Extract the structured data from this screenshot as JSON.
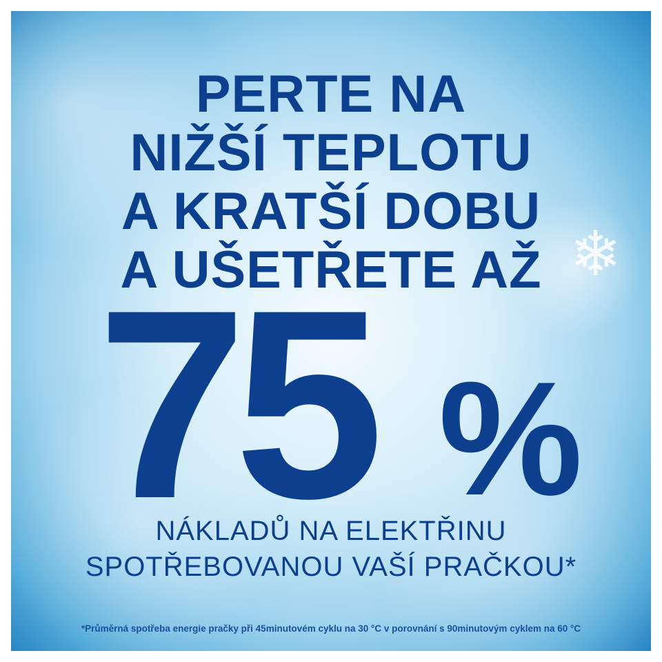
{
  "headline": [
    "PERTE NA",
    "NIŽŠÍ TEPLOTU",
    "A KRATŠÍ DOBU",
    "A UŠETŘETE AŽ"
  ],
  "savings": {
    "value": "75",
    "unit": "%"
  },
  "subline": [
    "NÁKLADŮ NA ELEKTŘINU",
    "SPOTŘEBOVANOU VAŠÍ PRAČKOU*"
  ],
  "footnote": "*Průměrná spotřeba energie pračky při 45minutovém cyklu na 30 °C v porovnání s 90minutovým cyklem na 60 °C",
  "colors": {
    "text": "#0d3f8f",
    "background": "#9fd3ee"
  },
  "icons": [
    "snowflake-icon"
  ]
}
